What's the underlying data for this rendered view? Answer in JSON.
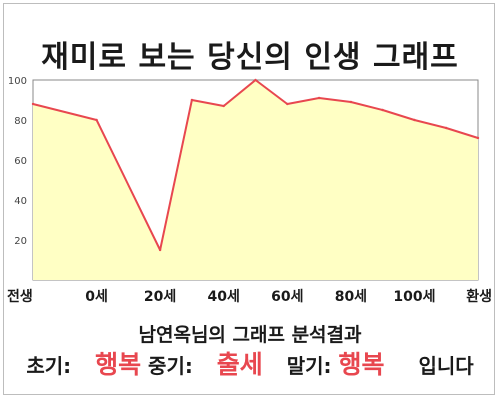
{
  "title": "재미로 보는 당신의 인생 그래프",
  "caption": "남연옥님의 그래프 분석결과",
  "summary": {
    "early_label": "초기:",
    "early_value": "행복",
    "mid_label": "중기:",
    "mid_value": "출세",
    "late_label": "말기:",
    "late_value": "행복",
    "ending": "입니다"
  },
  "colors": {
    "line": "#e8474f",
    "fill": "#ffffc4",
    "highlight": "#e8474f"
  },
  "chart_data": {
    "type": "area",
    "title": "재미로 보는 당신의 인생 그래프",
    "xlabel": "",
    "ylabel": "",
    "ylim": [
      0,
      100
    ],
    "yticks": [
      20,
      40,
      60,
      80,
      100
    ],
    "grid": false,
    "categories": [
      "전생",
      "0세",
      "20세",
      "40세",
      "60세",
      "80세",
      "100세",
      "환생"
    ],
    "x_positions": [
      -20,
      0,
      20,
      40,
      60,
      80,
      100,
      120
    ],
    "series": [
      {
        "x": [
          -20,
          0,
          20,
          30,
          40,
          50,
          60,
          70,
          80,
          90,
          100,
          110,
          120
        ],
        "values": [
          88,
          80,
          15,
          90,
          87,
          100,
          88,
          91,
          89,
          85,
          80,
          76,
          71
        ]
      }
    ]
  }
}
